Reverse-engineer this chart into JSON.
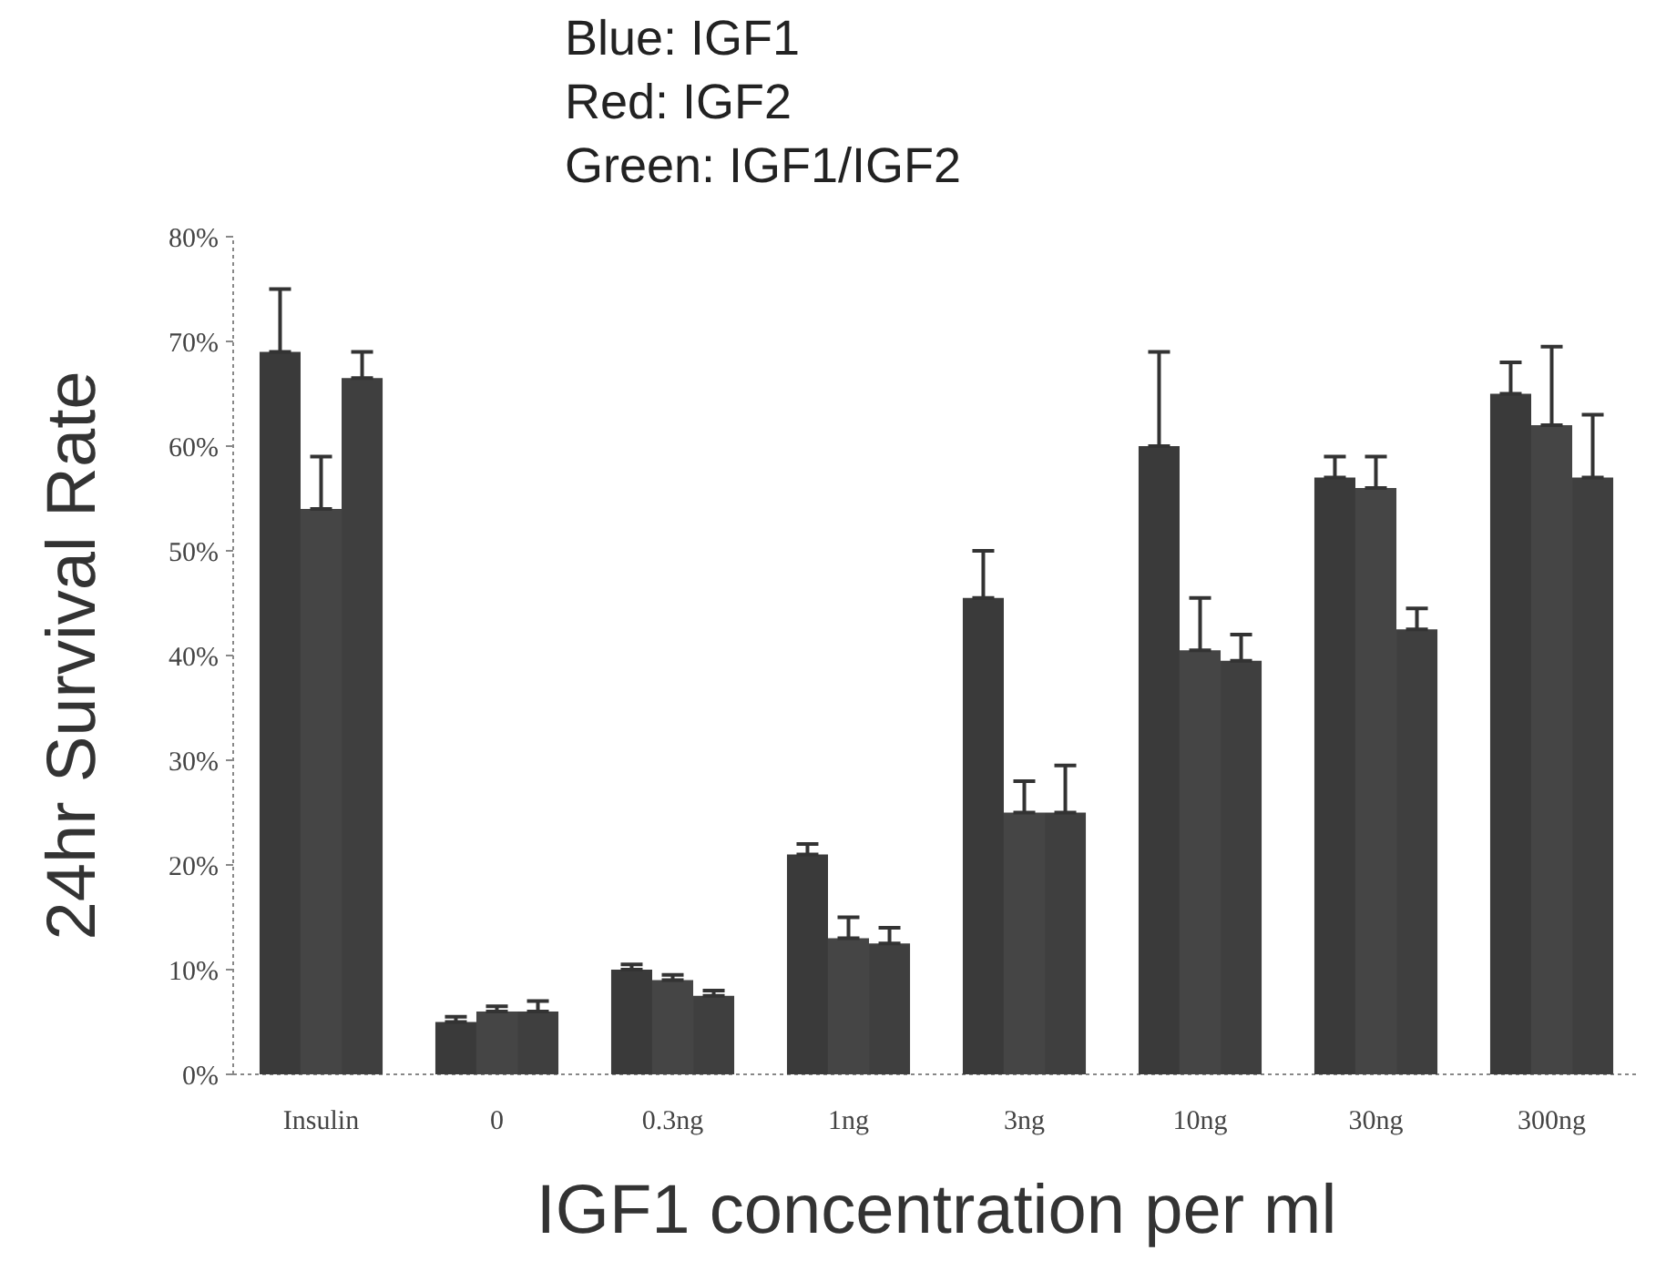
{
  "chart_data": {
    "type": "bar",
    "annotations": [
      "Blue: IGF1",
      "Red: IGF2",
      "Green: IGF1/IGF2"
    ],
    "xlabel": "IGF1 concentration per ml",
    "ylabel": "24hr Survival Rate",
    "categories": [
      "Insulin",
      "0",
      "0.3ng",
      "1ng",
      "3ng",
      "10ng",
      "30ng",
      "300ng"
    ],
    "series": [
      {
        "color": "#3a3a3a",
        "values": [
          69,
          5,
          10,
          21,
          45.5,
          60,
          57,
          65
        ],
        "errors": [
          [
            69,
            75
          ],
          [
            5,
            5.5
          ],
          [
            10,
            10.5
          ],
          [
            21,
            22
          ],
          [
            45.5,
            50
          ],
          [
            60,
            69
          ],
          [
            57,
            59
          ],
          [
            65,
            68
          ]
        ]
      },
      {
        "color": "#454545",
        "values": [
          54,
          6,
          9,
          13,
          25,
          40.5,
          56,
          62
        ],
        "errors": [
          [
            54,
            59
          ],
          [
            6,
            6.5
          ],
          [
            9,
            9.5
          ],
          [
            13,
            15
          ],
          [
            25,
            28
          ],
          [
            40.5,
            45.5
          ],
          [
            56,
            59
          ],
          [
            62,
            69.5
          ]
        ]
      },
      {
        "color": "#3f3f3f",
        "values": [
          66.5,
          6,
          7.5,
          12.5,
          25,
          39.5,
          42.5,
          57
        ],
        "errors": [
          [
            66.5,
            69
          ],
          [
            6,
            7
          ],
          [
            7.5,
            8
          ],
          [
            12.5,
            14
          ],
          [
            25,
            29.5
          ],
          [
            39.5,
            42
          ],
          [
            42.5,
            44.5
          ],
          [
            57,
            63
          ]
        ]
      }
    ],
    "ylim": [
      0,
      80
    ],
    "yticks": [
      {
        "value": 0,
        "label": "0%"
      },
      {
        "value": 10,
        "label": "10%"
      },
      {
        "value": 20,
        "label": "20%"
      },
      {
        "value": 30,
        "label": "30%"
      },
      {
        "value": 40,
        "label": "40%"
      },
      {
        "value": 50,
        "label": "50%"
      },
      {
        "value": 60,
        "label": "60%"
      },
      {
        "value": 70,
        "label": "70%"
      },
      {
        "value": 80,
        "label": "80%"
      }
    ],
    "grid": false
  }
}
